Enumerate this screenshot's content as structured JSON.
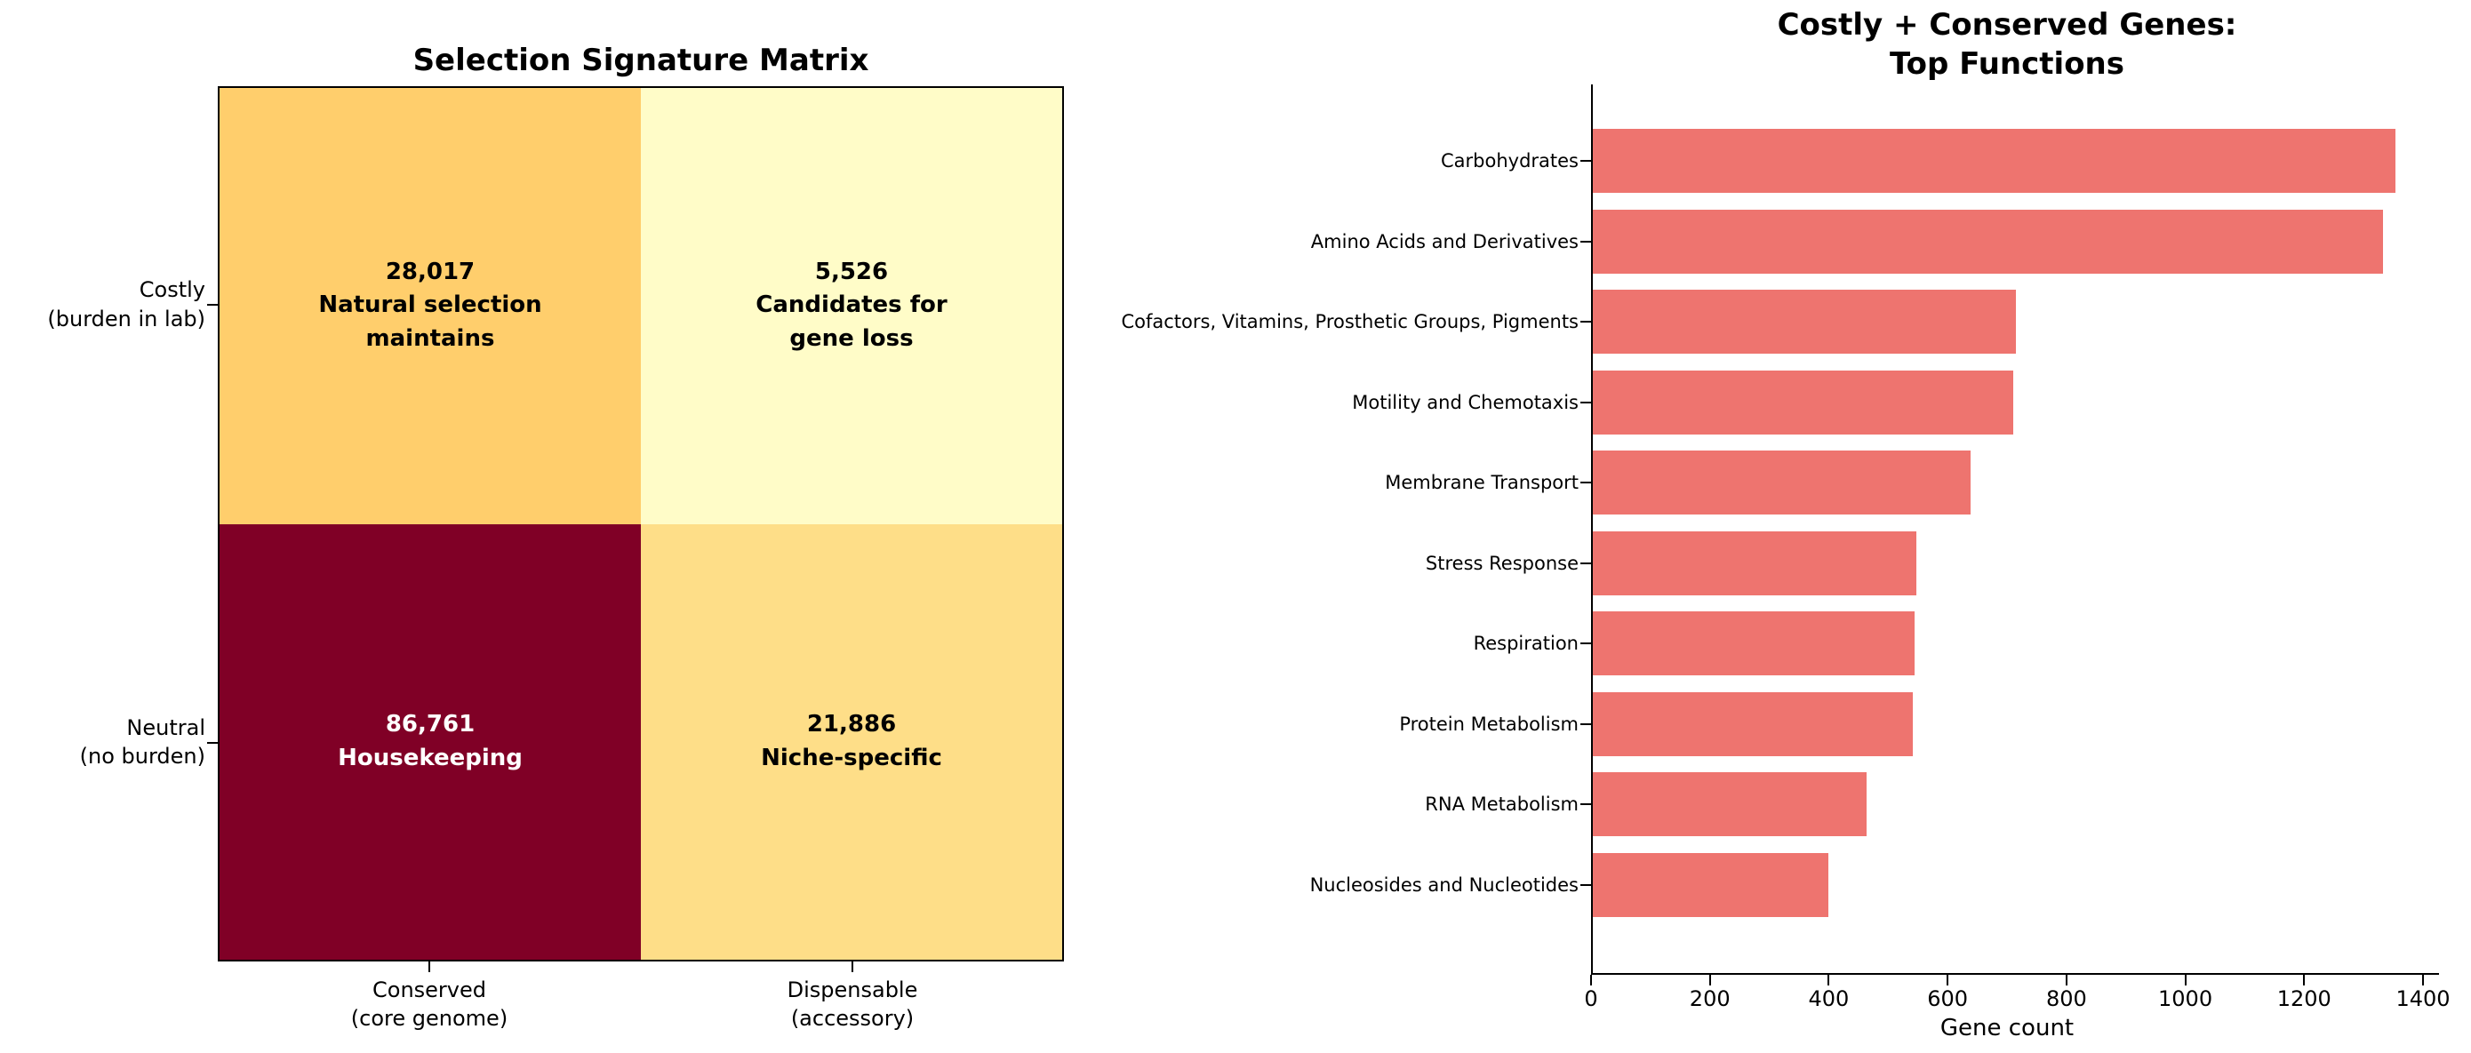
{
  "figure": {
    "background": "#ffffff"
  },
  "chart_data": [
    {
      "type": "heatmap",
      "title": "Selection Signature Matrix",
      "row_labels": [
        "Costly\n(burden in lab)",
        "Neutral\n(no burden)"
      ],
      "col_labels": [
        "Conserved\n(core genome)",
        "Dispensable\n(accessory)"
      ],
      "values": [
        [
          28017,
          5526
        ],
        [
          86761,
          21886
        ]
      ],
      "cell_texts": [
        [
          "28,017\nNatural selection\nmaintains",
          "5,526\nCandidates for\ngene loss"
        ],
        [
          "86,761\nHousekeeping",
          "21,886\nNiche-specific"
        ]
      ],
      "cell_colors": [
        [
          "#FFCE6C",
          "#FFFCC8"
        ],
        [
          "#800026",
          "#FEDE88"
        ]
      ],
      "cell_text_colors": [
        [
          "#000000",
          "#000000"
        ],
        [
          "#FFFFFF",
          "#000000"
        ]
      ],
      "grid": false,
      "legend": "none"
    },
    {
      "type": "bar",
      "orientation": "horizontal",
      "title": "Costly + Conserved Genes:\nTop Functions",
      "xlabel": "Gene count",
      "ylabel": "",
      "xlim": [
        0,
        1400
      ],
      "xticks": [
        0,
        200,
        400,
        600,
        800,
        1000,
        1200,
        1400
      ],
      "bar_color": "#EE746F",
      "grid": false,
      "legend": "none",
      "categories": [
        "Carbohydrates",
        "Amino Acids and Derivatives",
        "Cofactors, Vitamins, Prosthetic Groups, Pigments",
        "Motility and Chemotaxis",
        "Membrane Transport",
        "Stress Response",
        "Respiration",
        "Protein Metabolism",
        "RNA Metabolism",
        "Nucleosides and Nucleotides"
      ],
      "values": [
        1350,
        1330,
        712,
        708,
        636,
        545,
        542,
        539,
        461,
        397
      ]
    }
  ]
}
